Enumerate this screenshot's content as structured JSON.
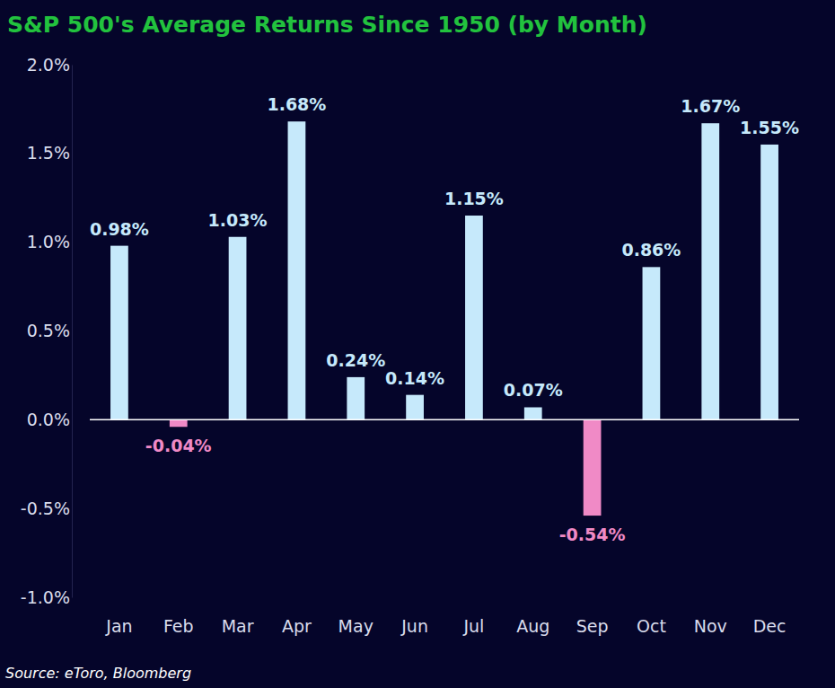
{
  "chart_data": {
    "type": "bar",
    "title": "S&P 500's Average Returns Since 1950 (by Month)",
    "source": "Source: eToro, Bloomberg",
    "categories": [
      "Jan",
      "Feb",
      "Mar",
      "Apr",
      "May",
      "Jun",
      "Jul",
      "Aug",
      "Sep",
      "Oct",
      "Nov",
      "Dec"
    ],
    "values": [
      0.98,
      -0.04,
      1.03,
      1.68,
      0.24,
      0.14,
      1.15,
      0.07,
      -0.54,
      0.86,
      1.67,
      1.55
    ],
    "value_labels": [
      "0.98%",
      "-0.04%",
      "1.03%",
      "1.68%",
      "0.24%",
      "0.14%",
      "1.15%",
      "0.07%",
      "-0.54%",
      "0.86%",
      "1.67%",
      "1.55%"
    ],
    "colors": [
      "#c6e9fb",
      "#f08ac6",
      "#c6e9fb",
      "#c6e9fb",
      "#c6e9fb",
      "#c6e9fb",
      "#c6e9fb",
      "#c6e9fb",
      "#f08ac6",
      "#c6e9fb",
      "#c6e9fb",
      "#c6e9fb"
    ],
    "ylim": [
      -1.0,
      2.0
    ],
    "yticks": [
      {
        "value": -1.0,
        "label": "-1.0%"
      },
      {
        "value": -0.5,
        "label": "-0.5%"
      },
      {
        "value": 0,
        "label": "0.0%"
      },
      {
        "value": 0.5,
        "label": "0.5%"
      },
      {
        "value": 1.0,
        "label": "1.0%"
      },
      {
        "value": 1.5,
        "label": "1.5%"
      },
      {
        "value": 2.0,
        "label": "2.0%"
      }
    ],
    "grid": false,
    "data_labels": true
  }
}
